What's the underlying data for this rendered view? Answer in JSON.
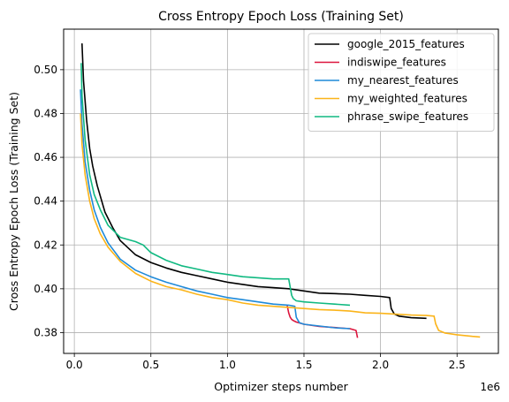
{
  "chart_data": {
    "type": "line",
    "title": "Cross Entropy Epoch Loss (Training Set)",
    "xlabel": "Optimizer steps number",
    "ylabel": "Cross Entropy Epoch Loss (Training Set)",
    "x_offset_label": "1e6",
    "xlim": [
      -0.07,
      2.77
    ],
    "ylim": [
      0.3705,
      0.5185
    ],
    "xticks": [
      0.0,
      0.5,
      1.0,
      1.5,
      2.0,
      2.5
    ],
    "xtick_labels": [
      "0.0",
      "0.5",
      "1.0",
      "1.5",
      "2.0",
      "2.5"
    ],
    "yticks": [
      0.38,
      0.4,
      0.42,
      0.44,
      0.46,
      0.48,
      0.5
    ],
    "ytick_labels": [
      "0.38",
      "0.40",
      "0.42",
      "0.44",
      "0.46",
      "0.48",
      "0.50"
    ],
    "grid": true,
    "legend_position": "top-right",
    "series": [
      {
        "name": "google_2015_features",
        "color": "#000000",
        "x": [
          0.05,
          0.06,
          0.08,
          0.1,
          0.12,
          0.15,
          0.2,
          0.25,
          0.3,
          0.4,
          0.5,
          0.6,
          0.7,
          0.8,
          0.9,
          1.0,
          1.1,
          1.2,
          1.3,
          1.4,
          1.45,
          1.5,
          1.6,
          1.7,
          1.8,
          1.9,
          2.0,
          2.06,
          2.07,
          2.09,
          2.12,
          2.2,
          2.3
        ],
        "y": [
          0.512,
          0.495,
          0.477,
          0.464,
          0.456,
          0.447,
          0.435,
          0.428,
          0.422,
          0.4155,
          0.412,
          0.4095,
          0.4075,
          0.406,
          0.4045,
          0.403,
          0.402,
          0.401,
          0.4005,
          0.4,
          0.3995,
          0.399,
          0.398,
          0.3978,
          0.3975,
          0.397,
          0.3965,
          0.396,
          0.391,
          0.3885,
          0.3875,
          0.3868,
          0.3865
        ]
      },
      {
        "name": "indiswipe_features",
        "color": "#dc143c",
        "x": [
          1.39,
          1.4,
          1.41,
          1.42,
          1.43,
          1.45,
          1.5,
          1.6,
          1.7,
          1.8,
          1.84,
          1.85
        ],
        "y": [
          0.3925,
          0.389,
          0.387,
          0.386,
          0.3855,
          0.3848,
          0.3838,
          0.3828,
          0.3823,
          0.3818,
          0.381,
          0.3776
        ]
      },
      {
        "name": "my_nearest_features",
        "color": "#1f8ad9",
        "x": [
          0.04,
          0.05,
          0.07,
          0.1,
          0.13,
          0.17,
          0.22,
          0.3,
          0.4,
          0.5,
          0.6,
          0.7,
          0.8,
          0.9,
          1.0,
          1.1,
          1.2,
          1.3,
          1.4,
          1.44,
          1.45,
          1.47,
          1.5,
          1.6,
          1.7,
          1.8
        ],
        "y": [
          0.491,
          0.475,
          0.458,
          0.445,
          0.436,
          0.428,
          0.421,
          0.4135,
          0.4085,
          0.4055,
          0.403,
          0.401,
          0.399,
          0.3975,
          0.396,
          0.395,
          0.394,
          0.393,
          0.3925,
          0.392,
          0.387,
          0.3845,
          0.3838,
          0.383,
          0.3822,
          0.3818
        ]
      },
      {
        "name": "my_weighted_features",
        "color": "#fbb41a",
        "x": [
          0.04,
          0.05,
          0.07,
          0.1,
          0.13,
          0.17,
          0.22,
          0.3,
          0.4,
          0.5,
          0.6,
          0.7,
          0.8,
          0.9,
          1.0,
          1.1,
          1.2,
          1.3,
          1.4,
          1.5,
          1.6,
          1.7,
          1.8,
          1.9,
          2.0,
          2.1,
          2.2,
          2.3,
          2.35,
          2.36,
          2.38,
          2.42,
          2.5,
          2.6,
          2.65
        ],
        "y": [
          0.48,
          0.466,
          0.452,
          0.44,
          0.432,
          0.425,
          0.419,
          0.4125,
          0.407,
          0.4035,
          0.401,
          0.3995,
          0.3975,
          0.396,
          0.395,
          0.3935,
          0.3925,
          0.392,
          0.3915,
          0.391,
          0.3905,
          0.3902,
          0.3898,
          0.389,
          0.3888,
          0.3884,
          0.388,
          0.3878,
          0.3875,
          0.384,
          0.381,
          0.3798,
          0.379,
          0.3783,
          0.378
        ]
      },
      {
        "name": "phrase_swipe_features",
        "color": "#10b981",
        "x": [
          0.045,
          0.05,
          0.07,
          0.1,
          0.13,
          0.17,
          0.22,
          0.3,
          0.4,
          0.45,
          0.5,
          0.6,
          0.7,
          0.8,
          0.9,
          1.0,
          1.1,
          1.2,
          1.3,
          1.4,
          1.42,
          1.43,
          1.45,
          1.5,
          1.6,
          1.7,
          1.8
        ],
        "y": [
          0.503,
          0.488,
          0.468,
          0.452,
          0.443,
          0.436,
          0.429,
          0.4235,
          0.4215,
          0.42,
          0.4165,
          0.413,
          0.4105,
          0.409,
          0.4075,
          0.4065,
          0.4055,
          0.405,
          0.4045,
          0.4045,
          0.397,
          0.3955,
          0.3945,
          0.394,
          0.3935,
          0.393,
          0.3925
        ]
      }
    ]
  }
}
